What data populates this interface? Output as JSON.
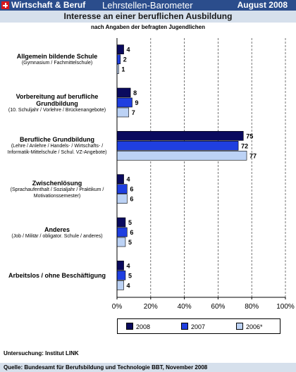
{
  "header": {
    "left": "Wirtschaft & Beruf",
    "center": "Lehrstellen-Barometer",
    "right": "August 2008"
  },
  "title": "Interesse an einer beruflichen Ausbildung",
  "subtitle": "nach Angaben der befragten Jugendlichen",
  "categories": [
    {
      "name": "Allgemein bildende Schule",
      "detail": [
        "(Gymnasium / Fachmittelschule)"
      ]
    },
    {
      "name": "Vorbereitung auf berufliche Grundbildung",
      "detail": [
        "(10. Schuljahr / Vorlehre / Brückenangebote)"
      ]
    },
    {
      "name": "Berufliche Grundbildung",
      "detail": [
        "(Lehre / Anlehre / Handels- / Wirtschafts- /",
        "Informatik-Mittelschule / Schul. VZ-Angebote)"
      ]
    },
    {
      "name": "Zwischenlösung",
      "detail": [
        "(Sprachaufenthalt / Sozialjahr / Praktikum /",
        "Motivationssemester)"
      ]
    },
    {
      "name": "Anderes",
      "detail": [
        "(Job / Militär / obligator. Schule / anderes)"
      ]
    },
    {
      "name": "Arbeitslos / ohne Beschäftigung",
      "detail": []
    }
  ],
  "colors": {
    "header_bg": "#2b4d8c",
    "band_bg": "#d6e0ec",
    "series": [
      "#0a0a5e",
      "#1f3fe0",
      "#bcd2f5"
    ]
  },
  "chart_data": {
    "type": "bar",
    "orientation": "horizontal",
    "categories": [
      "Allgemein bildende Schule",
      "Vorbereitung auf berufliche Grundbildung",
      "Berufliche Grundbildung",
      "Zwischenlösung",
      "Anderes",
      "Arbeitslos / ohne Beschäftigung"
    ],
    "series": [
      {
        "name": "2008",
        "values": [
          4,
          8,
          75,
          4,
          5,
          4
        ]
      },
      {
        "name": "2007",
        "values": [
          2,
          9,
          72,
          6,
          6,
          5
        ]
      },
      {
        "name": "2006*",
        "values": [
          1,
          7,
          77,
          6,
          5,
          4
        ]
      }
    ],
    "xlim": [
      0,
      100
    ],
    "xticks": [
      "0%",
      "20%",
      "40%",
      "60%",
      "80%",
      "100%"
    ],
    "grid": true,
    "legend": "bottom"
  },
  "note": "Untersuchung: Institut LINK",
  "source": "Quelle: Bundesamt für Berufsbildung und Technologie BBT, November 2008"
}
